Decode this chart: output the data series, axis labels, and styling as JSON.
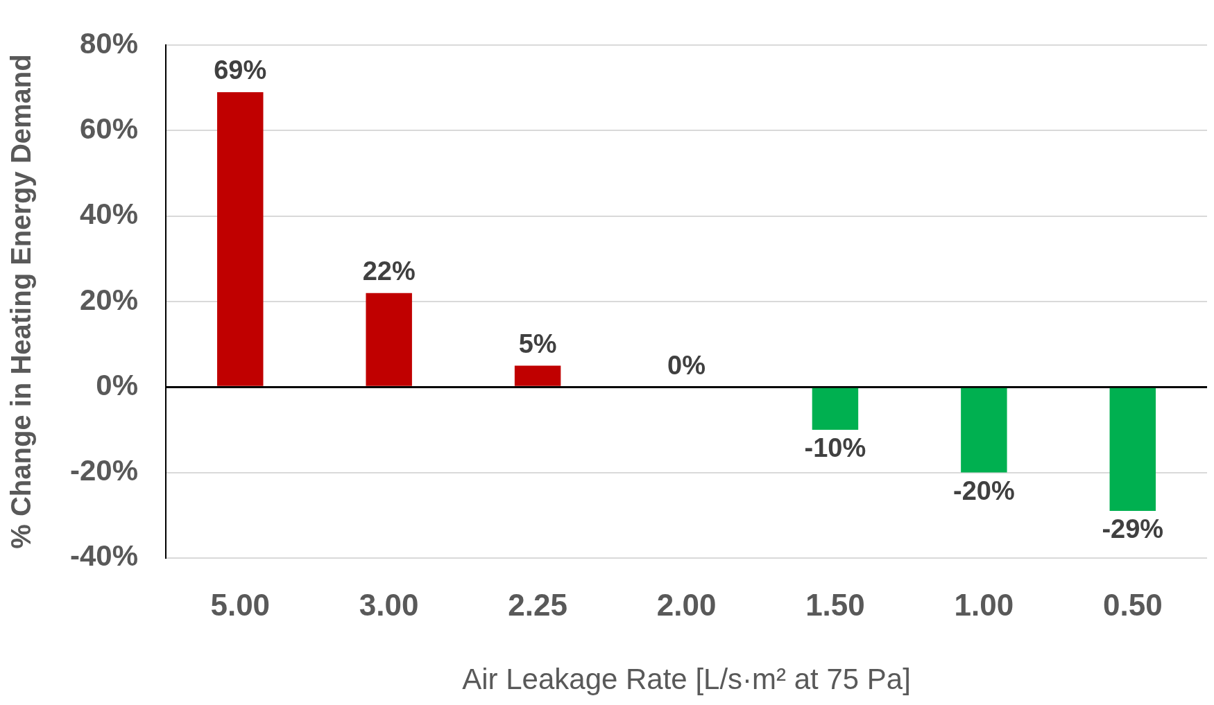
{
  "chart_data": {
    "type": "bar",
    "xlabel": "Air Leakage Rate [L/s·m² at 75 Pa]",
    "ylabel": "% Change in Heating Energy Demand",
    "categories": [
      "5.00",
      "3.00",
      "2.25",
      "2.00",
      "1.50",
      "1.00",
      "0.50"
    ],
    "values": [
      69,
      22,
      5,
      0,
      -10,
      -20,
      -29
    ],
    "colors": [
      "#c00000",
      "#c00000",
      "#c00000",
      "#c00000",
      "#00b050",
      "#00b050",
      "#00b050"
    ],
    "value_labels": [
      "69%",
      "22%",
      "5%",
      "0%",
      "-10%",
      "-20%",
      "-29%"
    ],
    "ylim": [
      -40,
      80
    ],
    "yticks": [
      {
        "value": -40,
        "label": "-40%"
      },
      {
        "value": -20,
        "label": "-20%"
      },
      {
        "value": 0,
        "label": "0%"
      },
      {
        "value": 20,
        "label": "20%"
      },
      {
        "value": 40,
        "label": "40%"
      },
      {
        "value": 60,
        "label": "60%"
      },
      {
        "value": 80,
        "label": "80%"
      }
    ],
    "grid": "y"
  }
}
